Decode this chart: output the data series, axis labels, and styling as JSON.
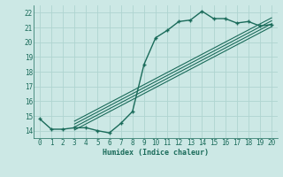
{
  "xlabel": "Humidex (Indice chaleur)",
  "bg_color": "#cce8e5",
  "grid_color": "#afd4d0",
  "line_color": "#1a6b5a",
  "xlim": [
    -0.5,
    20.5
  ],
  "ylim": [
    13.5,
    22.5
  ],
  "xticks": [
    0,
    1,
    2,
    3,
    4,
    5,
    6,
    7,
    8,
    9,
    10,
    11,
    12,
    13,
    14,
    15,
    16,
    17,
    18,
    19,
    20
  ],
  "yticks": [
    14,
    15,
    16,
    17,
    18,
    19,
    20,
    21,
    22
  ],
  "main_x": [
    0,
    1,
    2,
    3,
    4,
    5,
    6,
    7,
    8,
    9,
    10,
    11,
    12,
    13,
    14,
    15,
    16,
    17,
    18,
    19,
    20
  ],
  "main_y": [
    14.8,
    14.1,
    14.1,
    14.2,
    14.2,
    14.0,
    13.85,
    14.5,
    15.3,
    18.5,
    20.3,
    20.8,
    21.4,
    21.5,
    22.1,
    21.6,
    21.6,
    21.3,
    21.4,
    21.1,
    21.2
  ],
  "reg_lines": [
    {
      "x0": 3.0,
      "y0": 14.05,
      "x1": 20.0,
      "y1": 21.05
    },
    {
      "x0": 3.0,
      "y0": 14.25,
      "x1": 20.0,
      "y1": 21.25
    },
    {
      "x0": 3.0,
      "y0": 14.45,
      "x1": 20.0,
      "y1": 21.45
    },
    {
      "x0": 3.0,
      "y0": 14.65,
      "x1": 20.0,
      "y1": 21.65
    }
  ]
}
